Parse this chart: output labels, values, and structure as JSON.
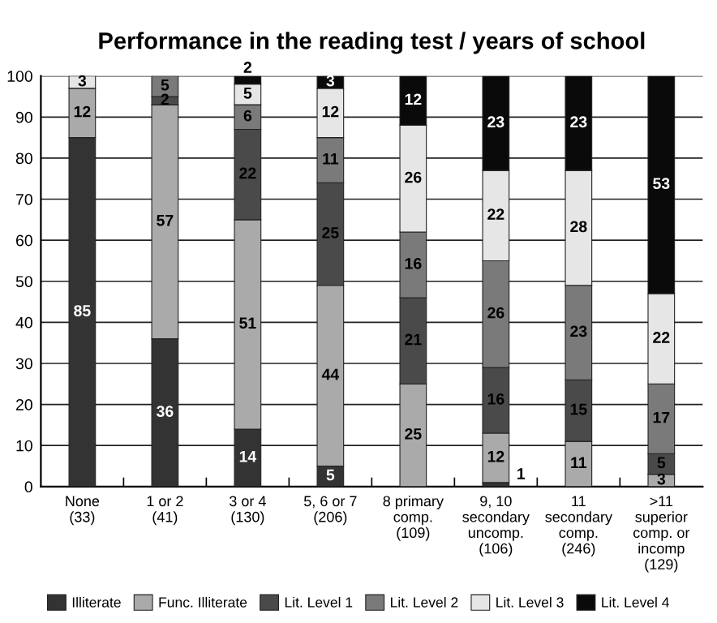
{
  "chart_data": {
    "type": "bar",
    "title": "Performance in the reading test / years of school",
    "stacked": true,
    "data_labels": true,
    "grid": "y",
    "legend": "bottom",
    "categories": [
      "None\n(33)",
      "1 or 2\n(41)",
      "3 or 4\n(130)",
      "5, 6 or 7\n(206)",
      "8 primary\ncomp.\n(109)",
      "9, 10\nsecondary\nuncomp.\n(106)",
      "11\nsecondary\ncomp.\n(246)",
      ">11\nsuperior\ncomp. or\nincomp\n(129)"
    ],
    "ylim": [
      0,
      100
    ],
    "yticks": [
      0,
      10,
      20,
      30,
      40,
      50,
      60,
      70,
      80,
      90,
      100
    ],
    "series": [
      {
        "name": "Illiterate",
        "color": "#333333",
        "values": [
          85,
          36,
          14,
          5,
          null,
          1,
          null,
          null
        ]
      },
      {
        "name": "Func. Illiterate",
        "color": "#aaaaaa",
        "values": [
          12,
          57,
          51,
          44,
          25,
          12,
          11,
          3
        ]
      },
      {
        "name": "Lit. Level 1",
        "color": "#4a4a4a",
        "values": [
          null,
          2,
          22,
          25,
          21,
          16,
          15,
          5
        ]
      },
      {
        "name": "Lit. Level 2",
        "color": "#7a7a7a",
        "values": [
          null,
          5,
          6,
          11,
          16,
          26,
          23,
          17
        ]
      },
      {
        "name": "Lit. Level 3",
        "color": "#e6e6e6",
        "values": [
          3,
          null,
          5,
          12,
          26,
          22,
          28,
          22
        ]
      },
      {
        "name": "Lit. Level 4",
        "color": "#0a0a0a",
        "values": [
          null,
          null,
          2,
          3,
          12,
          23,
          23,
          53
        ]
      }
    ]
  }
}
